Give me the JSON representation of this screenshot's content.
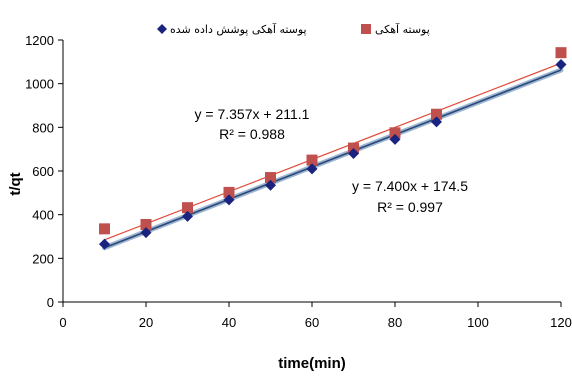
{
  "chart_data": {
    "type": "scatter",
    "xlabel": "time(min)",
    "ylabel": "t/qt",
    "xlim": [
      0,
      120
    ],
    "ylim": [
      0,
      1200
    ],
    "xticks": [
      0,
      20,
      40,
      60,
      80,
      100,
      120
    ],
    "yticks": [
      0,
      200,
      400,
      600,
      800,
      1000,
      1200
    ],
    "grid": false,
    "legend_position": "top",
    "series": [
      {
        "name": "پوسته آهکی پوشش داده شده",
        "marker": "diamond",
        "color": "#1a237e",
        "line_color": "#5a7fa8",
        "x": [
          10,
          20,
          30,
          40,
          50,
          60,
          70,
          80,
          90,
          120
        ],
        "y": [
          265,
          318,
          392,
          468,
          535,
          610,
          680,
          745,
          825,
          1088
        ],
        "fit": {
          "slope": 7.4,
          "intercept": 174.5
        },
        "equation": "y = 7.400x + 174.5",
        "r2": "R² = 0.997"
      },
      {
        "name": "پوسته آهکی",
        "marker": "square",
        "color": "#c0504d",
        "line_color": "#e04a3a",
        "x": [
          10,
          20,
          30,
          40,
          50,
          60,
          70,
          80,
          90,
          120
        ],
        "y": [
          335,
          355,
          432,
          502,
          570,
          650,
          705,
          775,
          860,
          1142
        ],
        "fit": {
          "slope": 7.357,
          "intercept": 211.1
        },
        "equation": "y = 7.357x + 211.1",
        "r2": "R² = 0.988"
      }
    ]
  }
}
